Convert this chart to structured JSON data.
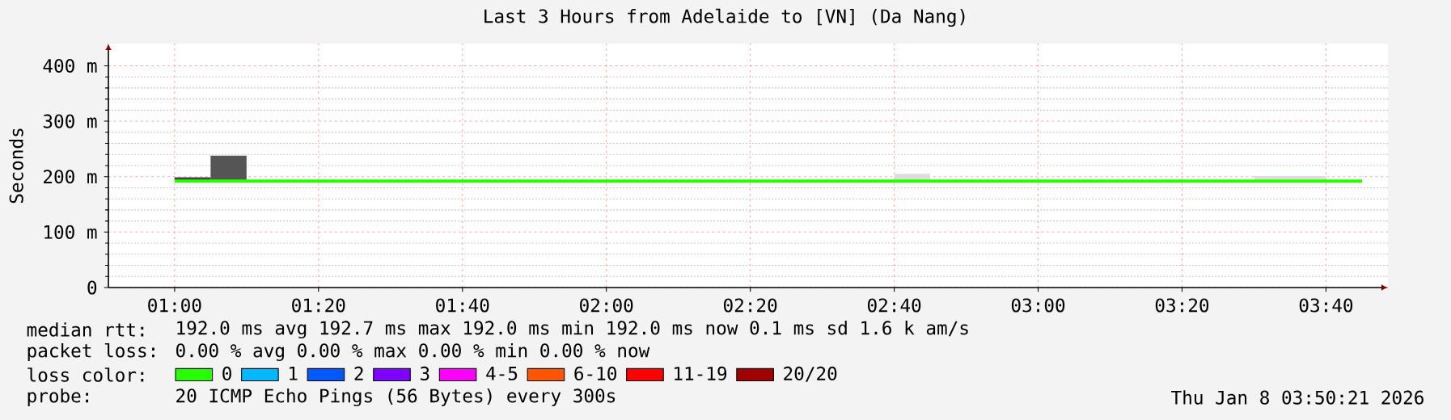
{
  "chart_data": {
    "type": "line",
    "title": "Last 3 Hours from Adelaide to [VN] (Da Nang)",
    "ylabel": "Seconds",
    "legend_title": "loss color:",
    "xlim": [
      0.8467,
      3.81
    ],
    "xticks": [
      {
        "value": 1,
        "label": "01:00"
      },
      {
        "value": 1.3333,
        "label": "01:20"
      },
      {
        "value": 1.6667,
        "label": "01:40"
      },
      {
        "value": 2,
        "label": "02:00"
      },
      {
        "value": 2.3333,
        "label": "02:20"
      },
      {
        "value": 2.6667,
        "label": "02:40"
      },
      {
        "value": 3,
        "label": "03:00"
      },
      {
        "value": 3.3333,
        "label": "03:20"
      },
      {
        "value": 3.6667,
        "label": "03:40"
      }
    ],
    "ylim": [
      0,
      440
    ],
    "yticks": [
      0,
      {
        "value": 100,
        "label": "100 m"
      },
      {
        "value": 200,
        "label": "200 m"
      },
      {
        "value": 300,
        "label": "300 m"
      },
      {
        "value": 400,
        "label": "400 m"
      }
    ],
    "grid": true,
    "legend": "bottom",
    "series": [
      {
        "type": "bar",
        "x": [
          1.0417,
          1.125,
          2.7083,
          3.5417,
          3.625
        ],
        "base": [
          192,
          192,
          192,
          192,
          192
        ],
        "values": [
          7,
          46,
          13,
          9,
          9
        ],
        "colors": [
          "#444444",
          "#555555",
          "#dddddd",
          "#dddddd",
          "#dddddd"
        ]
      },
      {
        "name": "0",
        "color": "#26ff00",
        "x": [
          1,
          3.75
        ],
        "values": [
          192,
          192
        ]
      },
      {
        "name": "1",
        "color": "#00b8ff"
      },
      {
        "name": "2",
        "color": "#0059ff"
      },
      {
        "name": "3",
        "color": "#7e00ff"
      },
      {
        "name": "4-5",
        "color": "#ff00ff"
      },
      {
        "name": "6-10",
        "color": "#ff5500"
      },
      {
        "name": "11-19",
        "color": "#ff0000"
      },
      {
        "name": "20/20",
        "color": "#a10000"
      }
    ],
    "annotations": [
      "median rtt:",
      "192.0 ms avg  192.7 ms max  192.0 ms min  192.0 ms now  0.1 ms sd  1.6 k am/s",
      "packet loss:",
      "0.00 % avg  0.00 % max  0.00 % min  0.00 % now",
      "probe:",
      "20 ICMP Echo Pings (56 Bytes) every 300s",
      "Thu Jan 8 03:50:21 2026"
    ]
  }
}
